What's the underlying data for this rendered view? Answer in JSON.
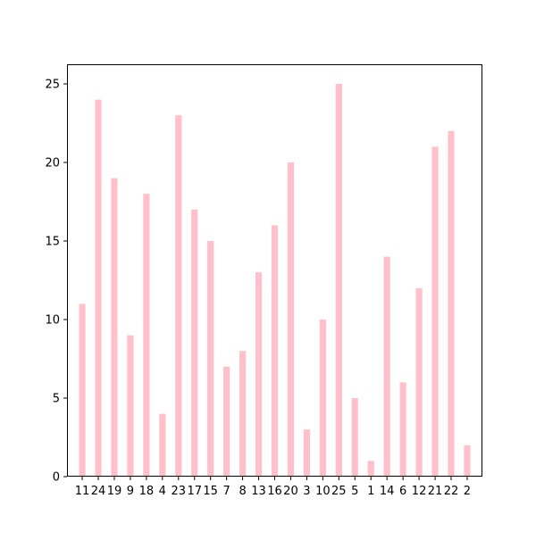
{
  "chart_data": {
    "type": "bar",
    "categories": [
      "11",
      "24",
      "19",
      "9",
      "18",
      "4",
      "23",
      "17",
      "15",
      "7",
      "8",
      "13",
      "16",
      "20",
      "3",
      "10",
      "25",
      "5",
      "1",
      "14",
      "6",
      "12",
      "21",
      "22",
      "2"
    ],
    "values": [
      11,
      24,
      19,
      9,
      18,
      4,
      23,
      17,
      15,
      7,
      8,
      13,
      16,
      20,
      3,
      10,
      25,
      5,
      1,
      14,
      6,
      12,
      21,
      22,
      2
    ],
    "title": "",
    "xlabel": "",
    "ylabel": "",
    "ylim": [
      0,
      26.25
    ],
    "yticks": [
      0,
      5,
      10,
      15,
      20,
      25
    ],
    "bar_color": "#ffc0cb",
    "grid": false,
    "legend": "none"
  }
}
